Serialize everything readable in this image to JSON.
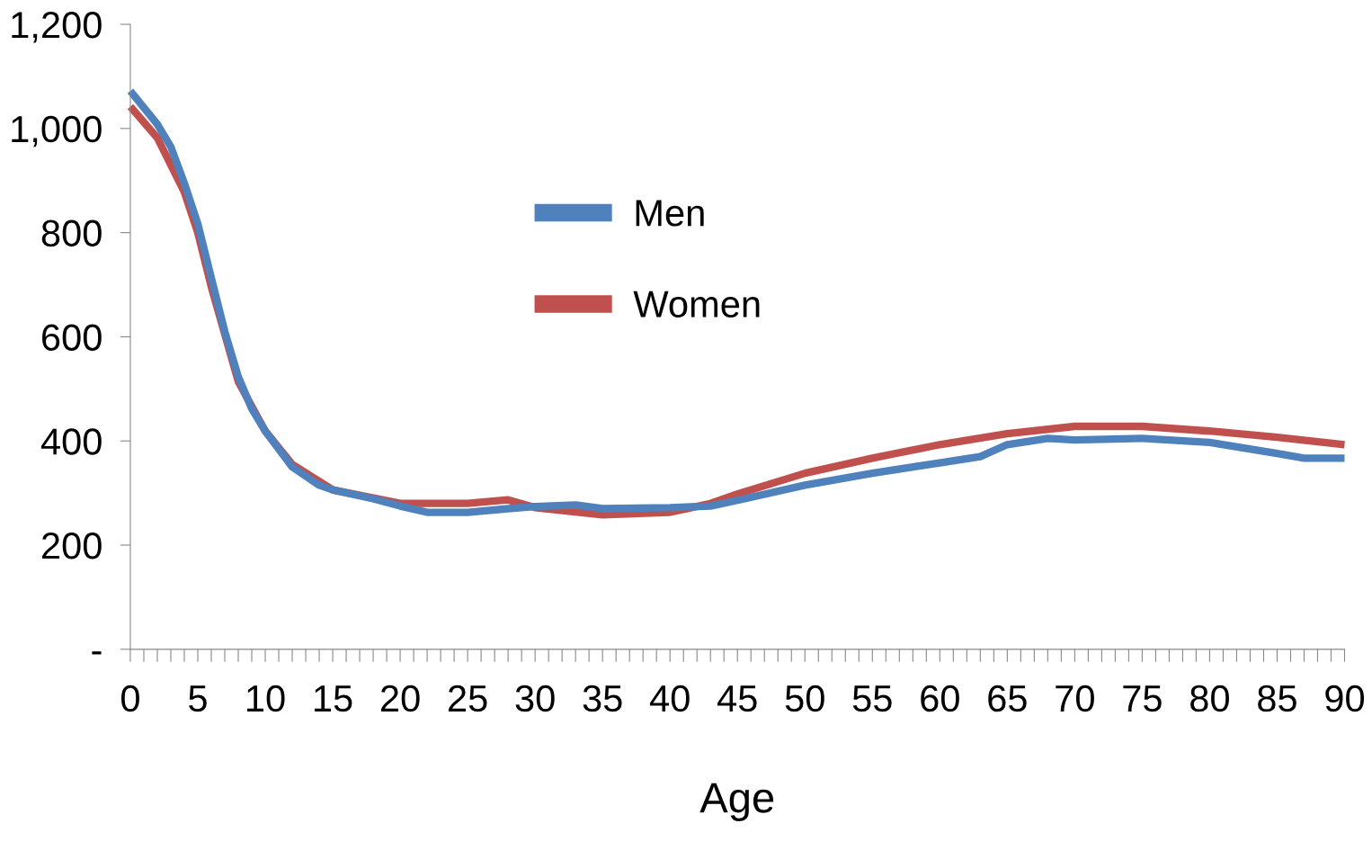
{
  "chart_data": {
    "type": "line",
    "xlabel": "Age",
    "xlim": [
      0,
      90
    ],
    "ylim": [
      0,
      1200
    ],
    "xticks": [
      {
        "value": 0,
        "label": "0"
      },
      {
        "value": 1,
        "label": null
      },
      {
        "value": 2,
        "label": null
      },
      {
        "value": 3,
        "label": null
      },
      {
        "value": 4,
        "label": null
      },
      {
        "value": 5,
        "label": "5"
      },
      {
        "value": 6,
        "label": null
      },
      {
        "value": 7,
        "label": null
      },
      {
        "value": 8,
        "label": null
      },
      {
        "value": 9,
        "label": null
      },
      {
        "value": 10,
        "label": "10"
      },
      {
        "value": 11,
        "label": null
      },
      {
        "value": 12,
        "label": null
      },
      {
        "value": 13,
        "label": null
      },
      {
        "value": 14,
        "label": null
      },
      {
        "value": 15,
        "label": "15"
      },
      {
        "value": 16,
        "label": null
      },
      {
        "value": 17,
        "label": null
      },
      {
        "value": 18,
        "label": null
      },
      {
        "value": 19,
        "label": null
      },
      {
        "value": 20,
        "label": "20"
      },
      {
        "value": 21,
        "label": null
      },
      {
        "value": 22,
        "label": null
      },
      {
        "value": 23,
        "label": null
      },
      {
        "value": 24,
        "label": null
      },
      {
        "value": 25,
        "label": "25"
      },
      {
        "value": 26,
        "label": null
      },
      {
        "value": 27,
        "label": null
      },
      {
        "value": 28,
        "label": null
      },
      {
        "value": 29,
        "label": null
      },
      {
        "value": 30,
        "label": "30"
      },
      {
        "value": 31,
        "label": null
      },
      {
        "value": 32,
        "label": null
      },
      {
        "value": 33,
        "label": null
      },
      {
        "value": 34,
        "label": null
      },
      {
        "value": 35,
        "label": "35"
      },
      {
        "value": 36,
        "label": null
      },
      {
        "value": 37,
        "label": null
      },
      {
        "value": 38,
        "label": null
      },
      {
        "value": 39,
        "label": null
      },
      {
        "value": 40,
        "label": "40"
      },
      {
        "value": 41,
        "label": null
      },
      {
        "value": 42,
        "label": null
      },
      {
        "value": 43,
        "label": null
      },
      {
        "value": 44,
        "label": null
      },
      {
        "value": 45,
        "label": "45"
      },
      {
        "value": 46,
        "label": null
      },
      {
        "value": 47,
        "label": null
      },
      {
        "value": 48,
        "label": null
      },
      {
        "value": 49,
        "label": null
      },
      {
        "value": 50,
        "label": "50"
      },
      {
        "value": 51,
        "label": null
      },
      {
        "value": 52,
        "label": null
      },
      {
        "value": 53,
        "label": null
      },
      {
        "value": 54,
        "label": null
      },
      {
        "value": 55,
        "label": "55"
      },
      {
        "value": 56,
        "label": null
      },
      {
        "value": 57,
        "label": null
      },
      {
        "value": 58,
        "label": null
      },
      {
        "value": 59,
        "label": null
      },
      {
        "value": 60,
        "label": "60"
      },
      {
        "value": 61,
        "label": null
      },
      {
        "value": 62,
        "label": null
      },
      {
        "value": 63,
        "label": null
      },
      {
        "value": 64,
        "label": null
      },
      {
        "value": 65,
        "label": "65"
      },
      {
        "value": 66,
        "label": null
      },
      {
        "value": 67,
        "label": null
      },
      {
        "value": 68,
        "label": null
      },
      {
        "value": 69,
        "label": null
      },
      {
        "value": 70,
        "label": "70"
      },
      {
        "value": 71,
        "label": null
      },
      {
        "value": 72,
        "label": null
      },
      {
        "value": 73,
        "label": null
      },
      {
        "value": 74,
        "label": null
      },
      {
        "value": 75,
        "label": "75"
      },
      {
        "value": 76,
        "label": null
      },
      {
        "value": 77,
        "label": null
      },
      {
        "value": 78,
        "label": null
      },
      {
        "value": 79,
        "label": null
      },
      {
        "value": 80,
        "label": "80"
      },
      {
        "value": 81,
        "label": null
      },
      {
        "value": 82,
        "label": null
      },
      {
        "value": 83,
        "label": null
      },
      {
        "value": 84,
        "label": null
      },
      {
        "value": 85,
        "label": "85"
      },
      {
        "value": 86,
        "label": null
      },
      {
        "value": 87,
        "label": null
      },
      {
        "value": 88,
        "label": null
      },
      {
        "value": 89,
        "label": null
      },
      {
        "value": 90,
        "label": "90"
      }
    ],
    "yticks": [
      {
        "value": 0,
        "label": "-"
      },
      {
        "value": 200,
        "label": "200"
      },
      {
        "value": 400,
        "label": "400"
      },
      {
        "value": 600,
        "label": "600"
      },
      {
        "value": 800,
        "label": "800"
      },
      {
        "value": 1000,
        "label": "1,000"
      },
      {
        "value": 1200,
        "label": "1,200"
      }
    ],
    "grid": false,
    "legend": "center",
    "marker": "none",
    "line_style": "solid",
    "series": [
      {
        "name": "Women",
        "color": "#c0504d",
        "x": [
          0,
          2,
          4,
          5,
          6,
          8,
          10,
          12,
          15,
          20,
          25,
          28,
          30,
          35,
          40,
          43,
          45,
          50,
          55,
          60,
          65,
          70,
          75,
          80,
          85,
          90
        ],
        "values": [
          1042,
          982,
          878,
          800,
          696,
          514,
          419,
          355,
          306,
          280,
          280,
          287,
          272,
          258,
          263,
          280,
          298,
          338,
          367,
          393,
          414,
          428,
          428,
          419,
          407,
          393
        ]
      },
      {
        "name": "Men",
        "color": "#4f81bd",
        "x": [
          0,
          2,
          3,
          4,
          5,
          6,
          7,
          8,
          9,
          10,
          12,
          14,
          15,
          18,
          20,
          22,
          25,
          28,
          30,
          33,
          35,
          40,
          43,
          45,
          50,
          55,
          60,
          63,
          65,
          68,
          70,
          75,
          80,
          85,
          87,
          90
        ],
        "values": [
          1072,
          1008,
          965,
          895,
          817,
          713,
          610,
          523,
          462,
          419,
          350,
          315,
          306,
          289,
          275,
          263,
          263,
          270,
          274,
          277,
          270,
          272,
          275,
          286,
          315,
          338,
          358,
          370,
          393,
          405,
          402,
          405,
          397,
          376,
          367,
          367
        ]
      }
    ]
  }
}
